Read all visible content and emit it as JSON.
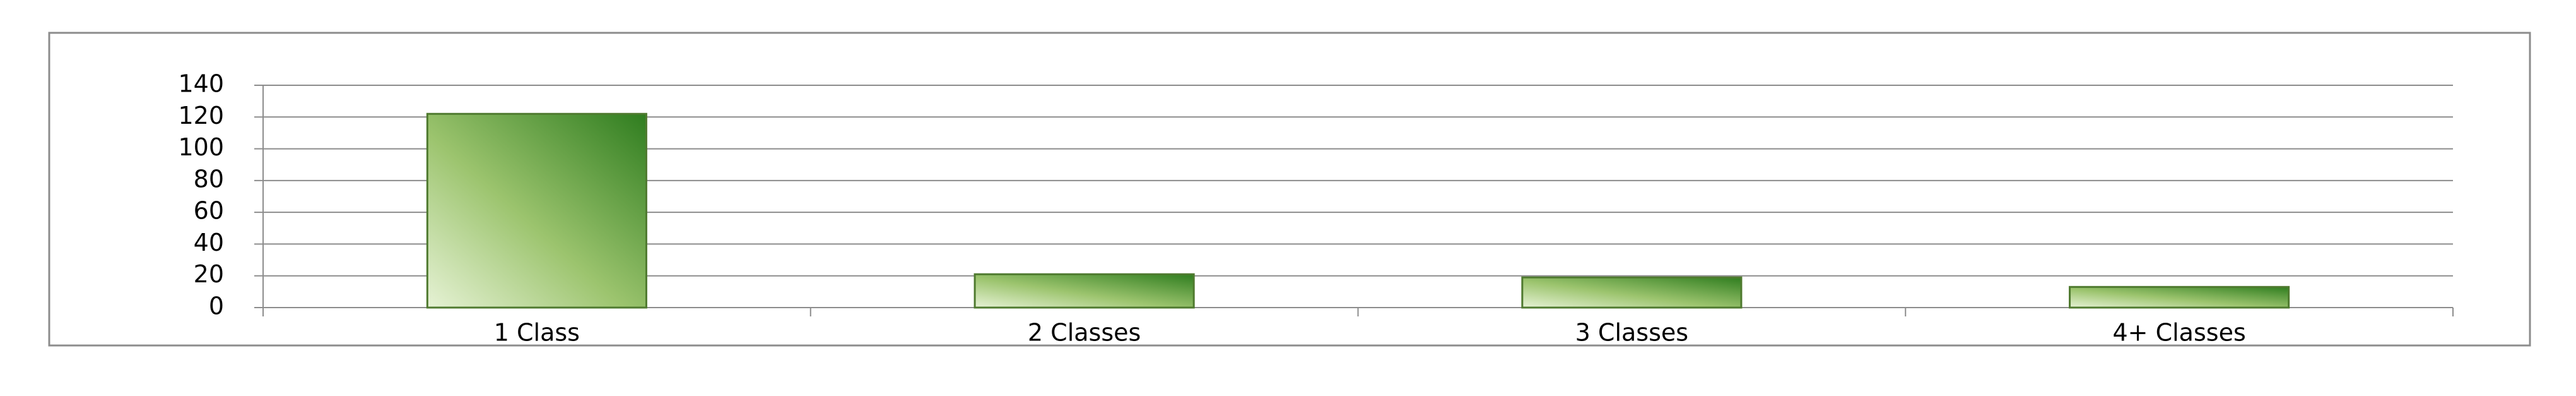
{
  "chart_data": {
    "type": "bar",
    "categories": [
      "1 Class",
      "2 Classes",
      "3 Classes",
      "4+ Classes"
    ],
    "values": [
      122,
      21,
      19,
      13
    ],
    "color": "#6aa84f",
    "ylim": [
      0,
      140
    ],
    "yticks": [
      0,
      20,
      40,
      60,
      80,
      100,
      120,
      140
    ],
    "grid": true
  }
}
